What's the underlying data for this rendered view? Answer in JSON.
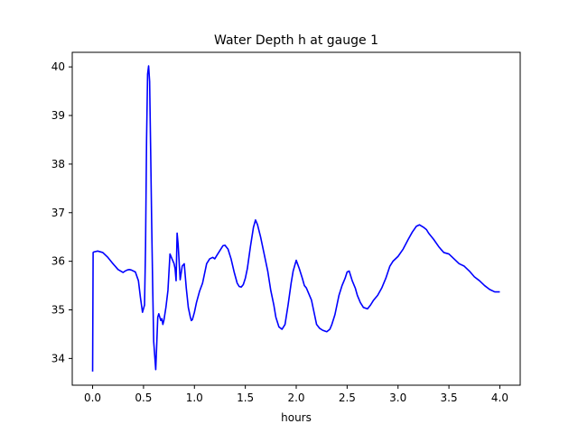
{
  "chart_data": {
    "type": "line",
    "title": "Water Depth h at gauge 1",
    "xlabel": "hours",
    "ylabel": "",
    "xlim": [
      -0.2,
      4.2
    ],
    "ylim": [
      33.45,
      40.3
    ],
    "xticks": [
      0.0,
      0.5,
      1.0,
      1.5,
      2.0,
      2.5,
      3.0,
      3.5,
      4.0
    ],
    "xtick_labels": [
      "0.0",
      "0.5",
      "1.0",
      "1.5",
      "2.0",
      "2.5",
      "3.0",
      "3.5",
      "4.0"
    ],
    "yticks": [
      34,
      35,
      36,
      37,
      38,
      39,
      40
    ],
    "ytick_labels": [
      "34",
      "35",
      "36",
      "37",
      "38",
      "39",
      "40"
    ],
    "grid": false,
    "color": "#0000ff",
    "series": [
      {
        "x": [
          0.0,
          0.005,
          0.01,
          0.05,
          0.1,
          0.15,
          0.2,
          0.25,
          0.3,
          0.32,
          0.34,
          0.36,
          0.38,
          0.42,
          0.45,
          0.47,
          0.49,
          0.51,
          0.52,
          0.53,
          0.54,
          0.55,
          0.56,
          0.57,
          0.58,
          0.59,
          0.6,
          0.62,
          0.63,
          0.64,
          0.65,
          0.66,
          0.67,
          0.68,
          0.69,
          0.7,
          0.72,
          0.74,
          0.76,
          0.78,
          0.8,
          0.81,
          0.82,
          0.83,
          0.84,
          0.86,
          0.88,
          0.9,
          0.91,
          0.92,
          0.93,
          0.94,
          0.95,
          0.96,
          0.97,
          0.98,
          1.0,
          1.02,
          1.05,
          1.08,
          1.1,
          1.12,
          1.15,
          1.18,
          1.2,
          1.22,
          1.25,
          1.28,
          1.3,
          1.33,
          1.36,
          1.39,
          1.42,
          1.44,
          1.46,
          1.48,
          1.5,
          1.52,
          1.55,
          1.58,
          1.6,
          1.62,
          1.65,
          1.68,
          1.72,
          1.75,
          1.78,
          1.8,
          1.83,
          1.86,
          1.89,
          1.92,
          1.93,
          1.95,
          1.97,
          2.0,
          2.03,
          2.06,
          2.08,
          2.1,
          2.12,
          2.15,
          2.18,
          2.2,
          2.23,
          2.26,
          2.3,
          2.33,
          2.35,
          2.38,
          2.4,
          2.42,
          2.45,
          2.48,
          2.5,
          2.52,
          2.55,
          2.58,
          2.6,
          2.63,
          2.66,
          2.7,
          2.73,
          2.76,
          2.8,
          2.84,
          2.88,
          2.92,
          2.95,
          3.0,
          3.05,
          3.1,
          3.14,
          3.18,
          3.21,
          3.25,
          3.28,
          3.3,
          3.35,
          3.4,
          3.42,
          3.45,
          3.5,
          3.55,
          3.6,
          3.65,
          3.7,
          3.75,
          3.8,
          3.85,
          3.9,
          3.95,
          4.0
        ],
        "y": [
          33.73,
          36.18,
          36.19,
          36.21,
          36.18,
          36.08,
          35.95,
          35.83,
          35.77,
          35.8,
          35.82,
          35.83,
          35.82,
          35.78,
          35.6,
          35.25,
          34.95,
          35.1,
          36.3,
          38.5,
          39.85,
          40.02,
          39.7,
          38.3,
          36.8,
          35.5,
          34.35,
          33.77,
          34.3,
          34.85,
          34.92,
          34.85,
          34.78,
          34.82,
          34.7,
          34.78,
          35.05,
          35.4,
          36.15,
          36.05,
          35.95,
          35.85,
          35.6,
          36.58,
          36.35,
          35.62,
          35.9,
          35.95,
          35.7,
          35.45,
          35.25,
          35.05,
          34.95,
          34.85,
          34.78,
          34.8,
          34.95,
          35.15,
          35.38,
          35.55,
          35.75,
          35.95,
          36.05,
          36.08,
          36.05,
          36.12,
          36.22,
          36.32,
          36.33,
          36.25,
          36.05,
          35.78,
          35.55,
          35.48,
          35.47,
          35.52,
          35.65,
          35.85,
          36.3,
          36.7,
          36.85,
          36.75,
          36.5,
          36.2,
          35.8,
          35.4,
          35.1,
          34.85,
          34.65,
          34.6,
          34.7,
          35.1,
          35.25,
          35.55,
          35.8,
          36.02,
          35.85,
          35.65,
          35.5,
          35.45,
          35.35,
          35.2,
          34.9,
          34.7,
          34.62,
          34.58,
          34.55,
          34.6,
          34.7,
          34.9,
          35.1,
          35.3,
          35.5,
          35.65,
          35.78,
          35.8,
          35.6,
          35.45,
          35.3,
          35.15,
          35.05,
          35.02,
          35.1,
          35.2,
          35.3,
          35.45,
          35.65,
          35.9,
          36.0,
          36.1,
          36.25,
          36.45,
          36.6,
          36.72,
          36.75,
          36.7,
          36.65,
          36.58,
          36.45,
          36.3,
          36.25,
          36.18,
          36.15,
          36.05,
          35.95,
          35.9,
          35.8,
          35.68,
          35.6,
          35.5,
          35.42,
          35.37,
          35.37
        ]
      }
    ]
  }
}
